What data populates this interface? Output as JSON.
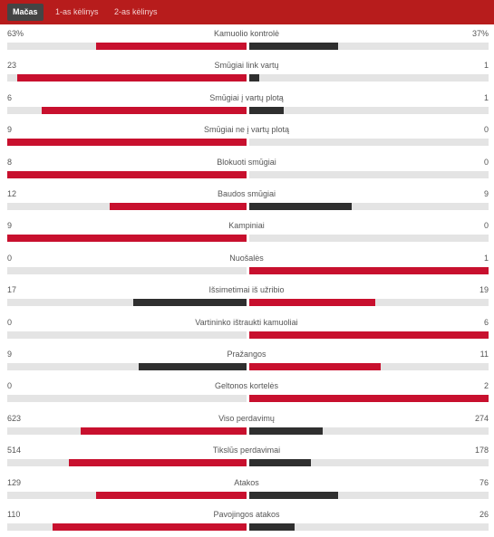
{
  "tabs": [
    {
      "label": "Mačas",
      "active": true
    },
    {
      "label": "1-as kėlinys",
      "active": false
    },
    {
      "label": "2-as kėlinys",
      "active": false
    }
  ],
  "colors": {
    "leader": "#c8102e",
    "trailer": "#2f2f2f",
    "track": "#e4e4e4",
    "tabbar": "#b71c1c"
  },
  "stats": [
    {
      "label": "Kamuolio kontrolė",
      "home": "63%",
      "away": "37%",
      "home_value": 63,
      "away_value": 37
    },
    {
      "label": "Smūgiai link vartų",
      "home": "23",
      "away": "1",
      "home_value": 23,
      "away_value": 1
    },
    {
      "label": "Smūgiai į vartų plotą",
      "home": "6",
      "away": "1",
      "home_value": 6,
      "away_value": 1
    },
    {
      "label": "Smūgiai ne į vartų plotą",
      "home": "9",
      "away": "0",
      "home_value": 9,
      "away_value": 0
    },
    {
      "label": "Blokuoti smūgiai",
      "home": "8",
      "away": "0",
      "home_value": 8,
      "away_value": 0
    },
    {
      "label": "Baudos smūgiai",
      "home": "12",
      "away": "9",
      "home_value": 12,
      "away_value": 9
    },
    {
      "label": "Kampiniai",
      "home": "9",
      "away": "0",
      "home_value": 9,
      "away_value": 0
    },
    {
      "label": "Nuošalės",
      "home": "0",
      "away": "1",
      "home_value": 0,
      "away_value": 1
    },
    {
      "label": "Išsimetimai iš užribio",
      "home": "17",
      "away": "19",
      "home_value": 17,
      "away_value": 19
    },
    {
      "label": "Vartininko ištraukti kamuoliai",
      "home": "0",
      "away": "6",
      "home_value": 0,
      "away_value": 6
    },
    {
      "label": "Pražangos",
      "home": "9",
      "away": "11",
      "home_value": 9,
      "away_value": 11
    },
    {
      "label": "Geltonos kortelės",
      "home": "0",
      "away": "2",
      "home_value": 0,
      "away_value": 2
    },
    {
      "label": "Viso perdavimų",
      "home": "623",
      "away": "274",
      "home_value": 623,
      "away_value": 274
    },
    {
      "label": "Tikslūs perdavimai",
      "home": "514",
      "away": "178",
      "home_value": 514,
      "away_value": 178
    },
    {
      "label": "Atakos",
      "home": "129",
      "away": "76",
      "home_value": 129,
      "away_value": 76
    },
    {
      "label": "Pavojingos atakos",
      "home": "110",
      "away": "26",
      "home_value": 110,
      "away_value": 26
    }
  ]
}
